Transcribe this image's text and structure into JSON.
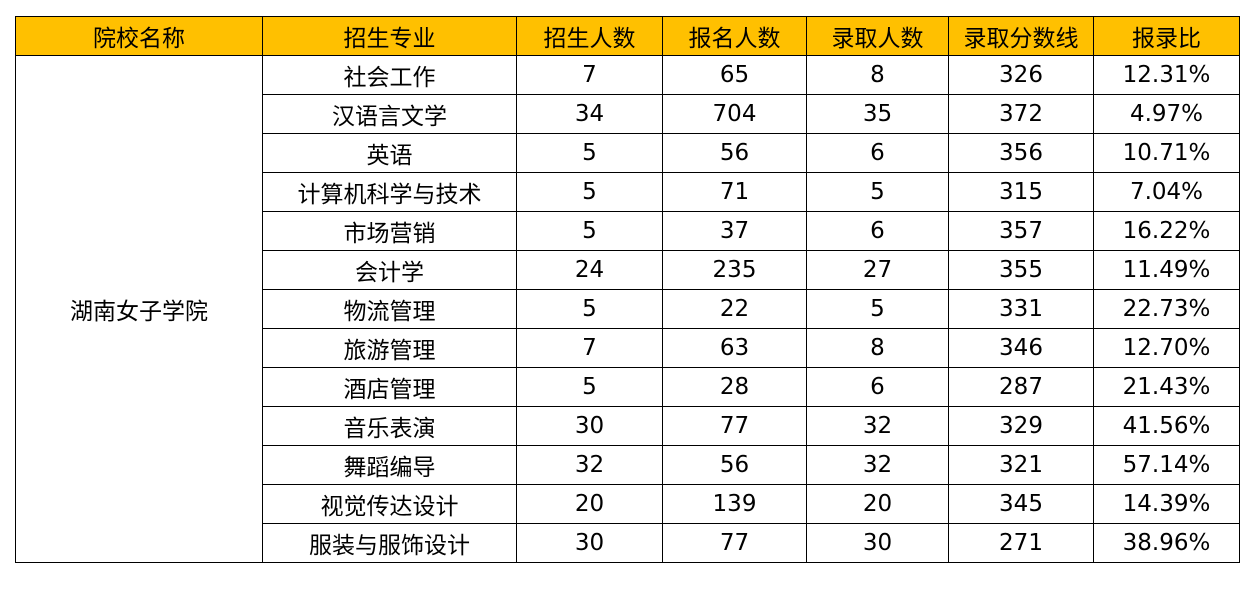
{
  "table": {
    "header": [
      "院校名称",
      "招生专业",
      "招生人数",
      "报名人数",
      "录取人数",
      "录取分数线",
      "报录比"
    ],
    "school": "湖南女子学院",
    "rows": [
      [
        "社会工作",
        "7",
        "65",
        "8",
        "326",
        "12.31%"
      ],
      [
        "汉语言文学",
        "34",
        "704",
        "35",
        "372",
        "4.97%"
      ],
      [
        "英语",
        "5",
        "56",
        "6",
        "356",
        "10.71%"
      ],
      [
        "计算机科学与技术",
        "5",
        "71",
        "5",
        "315",
        "7.04%"
      ],
      [
        "市场营销",
        "5",
        "37",
        "6",
        "357",
        "16.22%"
      ],
      [
        "会计学",
        "24",
        "235",
        "27",
        "355",
        "11.49%"
      ],
      [
        "物流管理",
        "5",
        "22",
        "5",
        "331",
        "22.73%"
      ],
      [
        "旅游管理",
        "7",
        "63",
        "8",
        "346",
        "12.70%"
      ],
      [
        "酒店管理",
        "5",
        "28",
        "6",
        "287",
        "21.43%"
      ],
      [
        "音乐表演",
        "30",
        "77",
        "32",
        "329",
        "41.56%"
      ],
      [
        "舞蹈编导",
        "32",
        "56",
        "32",
        "321",
        "57.14%"
      ],
      [
        "视觉传达设计",
        "20",
        "139",
        "20",
        "345",
        "14.39%"
      ],
      [
        "服装与服饰设计",
        "30",
        "77",
        "30",
        "271",
        "38.96%"
      ]
    ]
  }
}
